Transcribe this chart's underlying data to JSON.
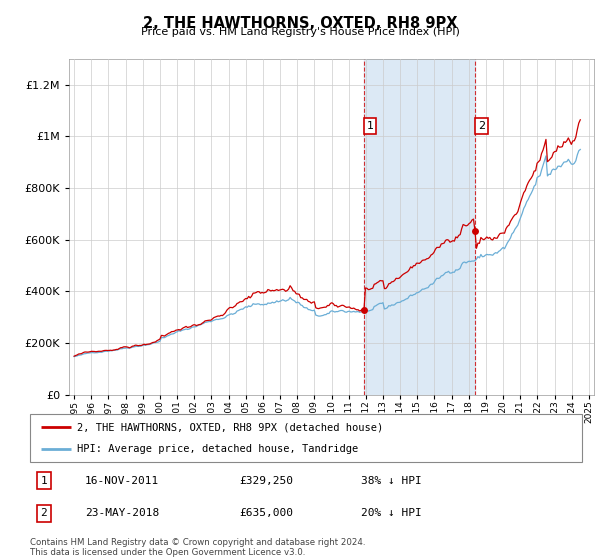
{
  "title": "2, THE HAWTHORNS, OXTED, RH8 9PX",
  "subtitle": "Price paid vs. HM Land Registry's House Price Index (HPI)",
  "legend_label_red": "2, THE HAWTHORNS, OXTED, RH8 9PX (detached house)",
  "legend_label_blue": "HPI: Average price, detached house, Tandridge",
  "annotation1_date": "16-NOV-2011",
  "annotation1_price": "£329,250",
  "annotation1_pct": "38% ↓ HPI",
  "annotation2_date": "23-MAY-2018",
  "annotation2_price": "£635,000",
  "annotation2_pct": "20% ↓ HPI",
  "footnote": "Contains HM Land Registry data © Crown copyright and database right 2024.\nThis data is licensed under the Open Government Licence v3.0.",
  "hpi_color": "#6baed6",
  "price_color": "#cc0000",
  "highlight_color": "#dce9f5",
  "vline_color": "#cc0000",
  "ylim": [
    0,
    1300000
  ],
  "yticks": [
    0,
    200000,
    400000,
    600000,
    800000,
    1000000,
    1200000
  ],
  "sale1_x": 2011.88,
  "sale1_y": 329250,
  "sale2_x": 2018.39,
  "sale2_y": 635000,
  "xlim": [
    1994.7,
    2025.3
  ],
  "xtick_years": [
    1995,
    1996,
    1997,
    1998,
    1999,
    2000,
    2001,
    2002,
    2003,
    2004,
    2005,
    2006,
    2007,
    2008,
    2009,
    2010,
    2011,
    2012,
    2013,
    2014,
    2015,
    2016,
    2017,
    2018,
    2019,
    2020,
    2021,
    2022,
    2023,
    2024,
    2025
  ]
}
